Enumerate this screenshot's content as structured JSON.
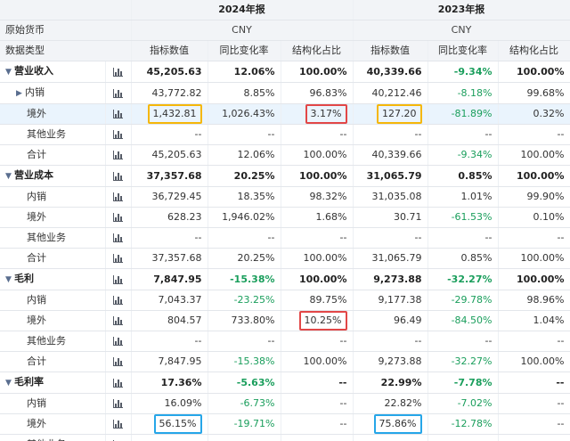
{
  "header": {
    "years": [
      "2024年报",
      "2023年报"
    ],
    "currency_label": "原始货币",
    "currency": "CNY",
    "type_label": "数据类型",
    "columns": [
      "指标数值",
      "同比变化率",
      "结构化占比"
    ]
  },
  "rows": [
    {
      "label": "营业收入",
      "kind": "section",
      "caret": "▼",
      "values": [
        "45,205.63",
        "12.06%",
        "100.00%",
        "40,339.66",
        "-9.34%",
        "100.00%"
      ]
    },
    {
      "label": "内销",
      "kind": "sub-expand",
      "caret": "▶",
      "values": [
        "43,772.82",
        "8.85%",
        "96.83%",
        "40,212.46",
        "-8.18%",
        "99.68%"
      ]
    },
    {
      "label": "境外",
      "kind": "sub",
      "highlight": true,
      "values": [
        "1,432.81",
        "1,026.43%",
        "3.17%",
        "127.20",
        "-81.89%",
        "0.32%"
      ]
    },
    {
      "label": "其他业务",
      "kind": "sub",
      "values": [
        "--",
        "--",
        "--",
        "--",
        "--",
        "--"
      ]
    },
    {
      "label": "合计",
      "kind": "sub",
      "values": [
        "45,205.63",
        "12.06%",
        "100.00%",
        "40,339.66",
        "-9.34%",
        "100.00%"
      ]
    },
    {
      "label": "营业成本",
      "kind": "section",
      "caret": "▼",
      "values": [
        "37,357.68",
        "20.25%",
        "100.00%",
        "31,065.79",
        "0.85%",
        "100.00%"
      ]
    },
    {
      "label": "内销",
      "kind": "sub",
      "values": [
        "36,729.45",
        "18.35%",
        "98.32%",
        "31,035.08",
        "1.01%",
        "99.90%"
      ]
    },
    {
      "label": "境外",
      "kind": "sub",
      "values": [
        "628.23",
        "1,946.02%",
        "1.68%",
        "30.71",
        "-61.53%",
        "0.10%"
      ]
    },
    {
      "label": "其他业务",
      "kind": "sub",
      "values": [
        "--",
        "--",
        "--",
        "--",
        "--",
        "--"
      ]
    },
    {
      "label": "合计",
      "kind": "sub",
      "values": [
        "37,357.68",
        "20.25%",
        "100.00%",
        "31,065.79",
        "0.85%",
        "100.00%"
      ]
    },
    {
      "label": "毛利",
      "kind": "section",
      "caret": "▼",
      "values": [
        "7,847.95",
        "-15.38%",
        "100.00%",
        "9,273.88",
        "-32.27%",
        "100.00%"
      ]
    },
    {
      "label": "内销",
      "kind": "sub",
      "values": [
        "7,043.37",
        "-23.25%",
        "89.75%",
        "9,177.38",
        "-29.78%",
        "98.96%"
      ]
    },
    {
      "label": "境外",
      "kind": "sub",
      "values": [
        "804.57",
        "733.80%",
        "10.25%",
        "96.49",
        "-84.50%",
        "1.04%"
      ]
    },
    {
      "label": "其他业务",
      "kind": "sub",
      "values": [
        "--",
        "--",
        "--",
        "--",
        "--",
        "--"
      ]
    },
    {
      "label": "合计",
      "kind": "sub",
      "values": [
        "7,847.95",
        "-15.38%",
        "100.00%",
        "9,273.88",
        "-32.27%",
        "100.00%"
      ]
    },
    {
      "label": "毛利率",
      "kind": "section",
      "caret": "▼",
      "values": [
        "17.36%",
        "-5.63%",
        "--",
        "22.99%",
        "-7.78%",
        "--"
      ]
    },
    {
      "label": "内销",
      "kind": "sub",
      "values": [
        "16.09%",
        "-6.73%",
        "--",
        "22.82%",
        "-7.02%",
        "--"
      ]
    },
    {
      "label": "境外",
      "kind": "sub",
      "values": [
        "56.15%",
        "-19.71%",
        "--",
        "75.86%",
        "-12.78%",
        "--"
      ]
    },
    {
      "label": "其他业务",
      "kind": "sub",
      "values": [
        "--",
        "--",
        "--",
        "--",
        "--",
        "--"
      ]
    }
  ],
  "colors": {
    "negative": "#1a9e5c",
    "highlight_orange": "#f5b70a",
    "highlight_red": "#e24747",
    "highlight_blue": "#26a6e8"
  }
}
